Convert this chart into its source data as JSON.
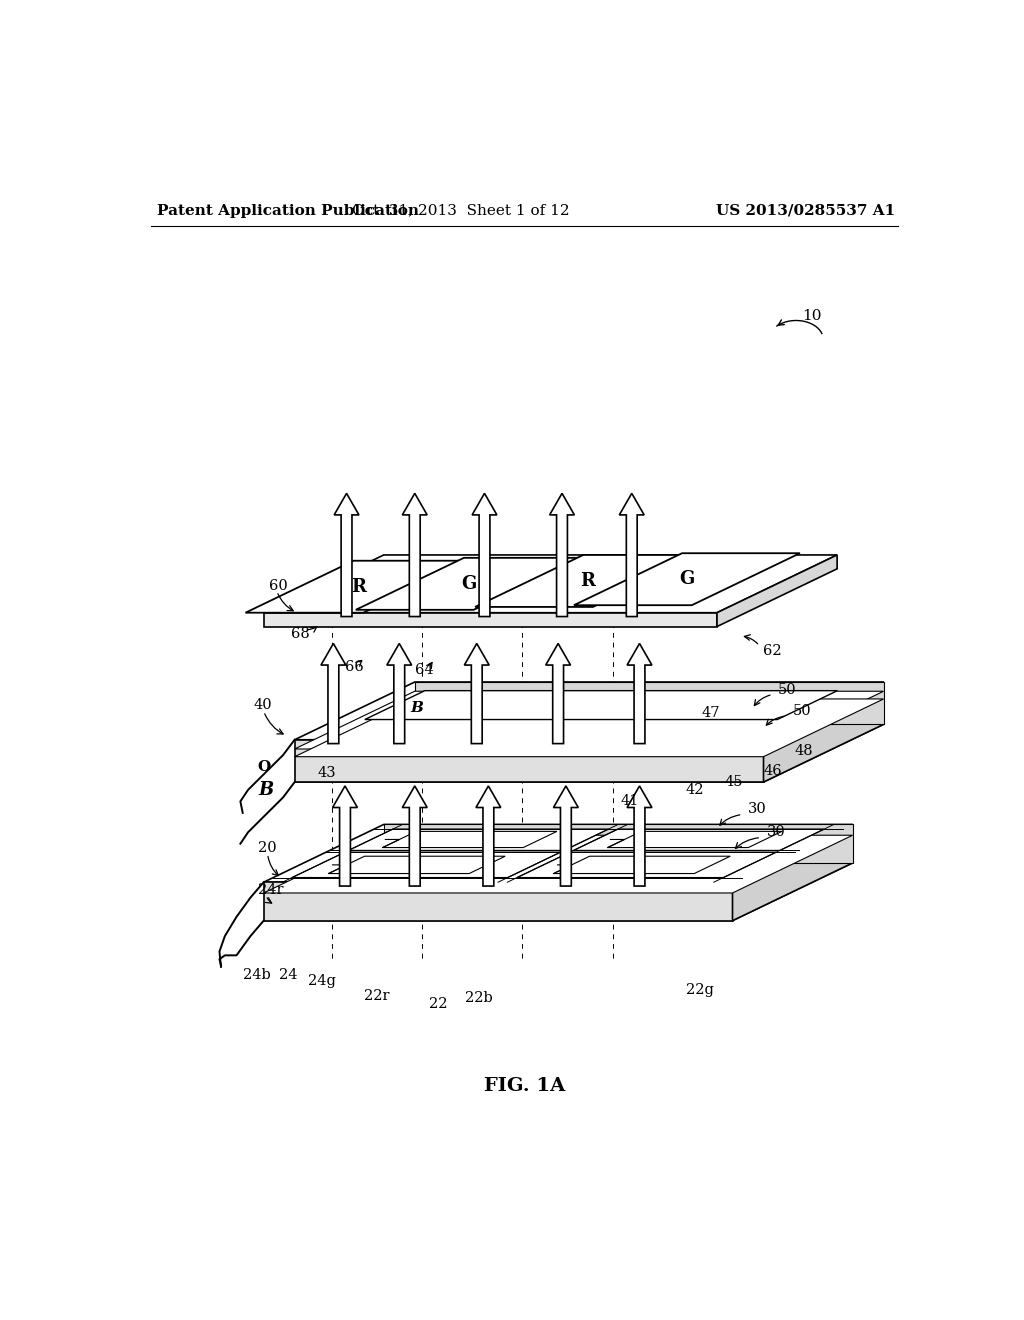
{
  "bg_color": "#ffffff",
  "header_left": "Patent Application Publication",
  "header_mid": "Oct. 31, 2013  Sheet 1 of 12",
  "header_right": "US 2013/0285537 A1",
  "figure_label": "FIG. 1A",
  "header_fontsize": 11,
  "fig_label_fontsize": 14
}
